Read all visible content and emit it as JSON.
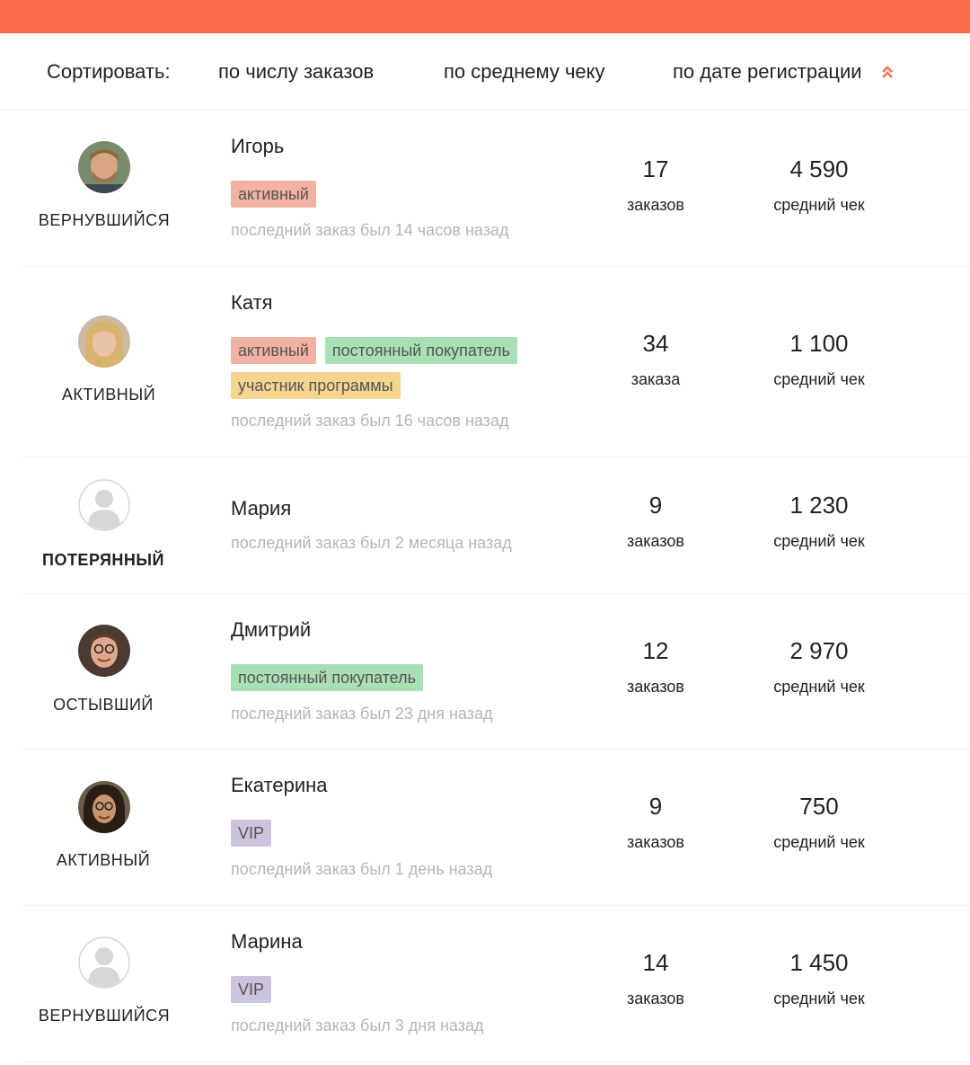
{
  "colors": {
    "accent": "#fb6d4d",
    "tag_active": "#f2b2a3",
    "tag_regular": "#a9dfb5",
    "tag_program": "#f5d48f",
    "tag_vip": "#cdc3dd"
  },
  "sort": {
    "label": "Сортировать:",
    "by_orders": "по числу заказов",
    "by_check": "по среднему чеку",
    "by_date": "по дате регистрации"
  },
  "customers": [
    {
      "name": "Игорь",
      "status": "вернувшийся",
      "tags": [
        "активный"
      ],
      "last_order": "последний заказ был 14 часов назад",
      "orders": "17",
      "orders_label": "заказов",
      "avg_check": "4 590",
      "avg_label": "средний чек",
      "avatar": "photo-man-beard"
    },
    {
      "name": "Катя",
      "status": "активный",
      "tags": [
        "активный",
        "постоянный покупатель",
        "участник программы"
      ],
      "last_order": "последний заказ был 16 часов назад",
      "orders": "34",
      "orders_label": "заказа",
      "avg_check": "1 100",
      "avg_label": "средний чек",
      "avatar": "photo-woman-blonde"
    },
    {
      "name": "Мария",
      "status": "потерянный",
      "tags": [],
      "last_order": "последний заказ был 2 месяца назад",
      "orders": "9",
      "orders_label": "заказов",
      "avg_check": "1 230",
      "avg_label": "средний чек",
      "avatar": "placeholder-user-icon"
    },
    {
      "name": "Дмитрий",
      "status": "остывший",
      "tags": [
        "постоянный покупатель"
      ],
      "last_order": "последний заказ был 23 дня назад",
      "orders": "12",
      "orders_label": "заказов",
      "avg_check": "2 970",
      "avg_label": "средний чек",
      "avatar": "photo-man-glasses"
    },
    {
      "name": "Екатерина",
      "status": "активный",
      "tags": [
        "VIP"
      ],
      "last_order": "последний заказ был 1 день назад",
      "orders": "9",
      "orders_label": "заказов",
      "avg_check": "750",
      "avg_label": "средний чек",
      "avatar": "photo-woman-curly"
    },
    {
      "name": "Марина",
      "status": "вернувшийся",
      "tags": [
        "VIP"
      ],
      "last_order": "последний заказ был 3 дня назад",
      "orders": "14",
      "orders_label": "заказов",
      "avg_check": "1 450",
      "avg_label": "средний чек",
      "avatar": "placeholder-user-icon"
    }
  ]
}
